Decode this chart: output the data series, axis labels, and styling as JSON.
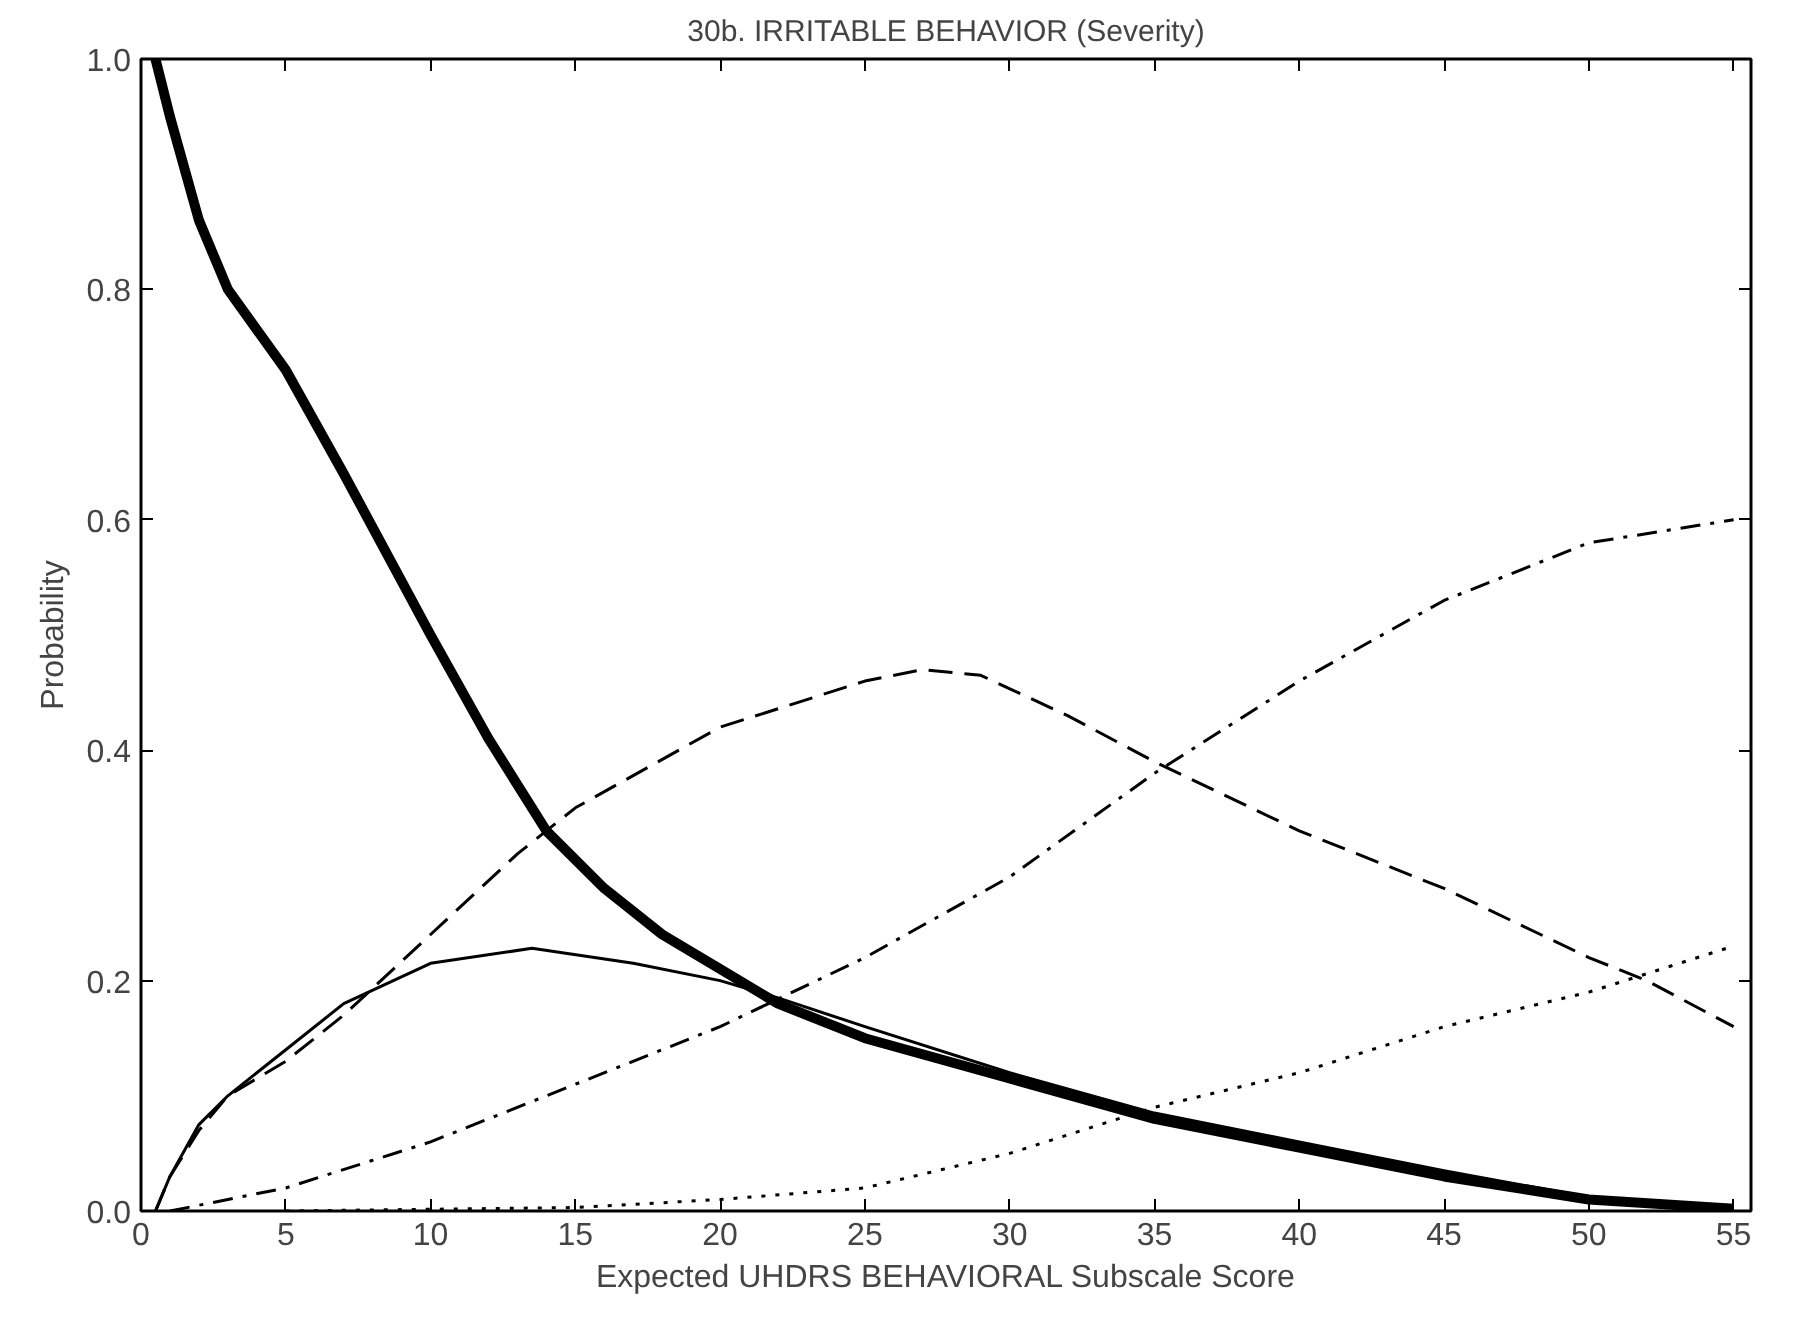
{
  "chart_data": {
    "type": "line",
    "title": "30b. IRRITABLE BEHAVIOR (Severity)",
    "xlabel": "Expected UHDRS BEHAVIORAL Subscale Score",
    "ylabel": "Probability",
    "xlim": [
      0,
      55.6
    ],
    "ylim": [
      0,
      1.0
    ],
    "xticks": [
      0,
      5,
      10,
      15,
      20,
      25,
      30,
      35,
      40,
      45,
      50,
      55
    ],
    "yticks": [
      {
        "value": 0,
        "label": "0.0"
      },
      {
        "value": 0.2,
        "label": "0.2"
      },
      {
        "value": 0.4,
        "label": "0.4"
      },
      {
        "value": 0.6,
        "label": "0.6"
      },
      {
        "value": 0.8,
        "label": "0.8"
      },
      {
        "value": 1.0,
        "label": "1.0"
      }
    ],
    "grid": false,
    "series": [
      {
        "color": "#000000",
        "line_style": "solid",
        "x": [
          0.5,
          1,
          2,
          3,
          5,
          7,
          10,
          12,
          14,
          16,
          18,
          20,
          22,
          25,
          30,
          35,
          40,
          45,
          50,
          55
        ],
        "values": [
          1.0,
          0.95,
          0.86,
          0.8,
          0.73,
          0.64,
          0.5,
          0.41,
          0.33,
          0.28,
          0.24,
          0.21,
          0.18,
          0.15,
          0.115,
          0.08,
          0.055,
          0.03,
          0.01,
          0.002
        ]
      },
      {
        "color": "#000000",
        "line_style": "solid",
        "x": [
          0.5,
          1,
          2,
          3,
          5,
          7,
          10,
          13.5,
          17,
          20,
          22,
          25,
          30,
          35,
          40,
          45,
          50,
          55
        ],
        "values": [
          0,
          0.03,
          0.075,
          0.1,
          0.14,
          0.18,
          0.215,
          0.228,
          0.215,
          0.2,
          0.185,
          0.16,
          0.12,
          0.085,
          0.06,
          0.035,
          0.012,
          0.002
        ]
      },
      {
        "color": "#000000",
        "line_style": "dashed",
        "x": [
          0.5,
          1,
          2,
          3,
          5,
          7,
          10,
          13,
          15,
          20,
          25,
          27,
          29,
          32,
          35,
          40,
          45,
          50,
          52,
          55
        ],
        "values": [
          0,
          0.03,
          0.07,
          0.1,
          0.13,
          0.17,
          0.24,
          0.31,
          0.35,
          0.42,
          0.46,
          0.47,
          0.465,
          0.43,
          0.39,
          0.33,
          0.28,
          0.22,
          0.2,
          0.16
        ]
      },
      {
        "color": "#000000",
        "line_style": "dashdot",
        "x": [
          1,
          3,
          5,
          10,
          15,
          20,
          25,
          30,
          35,
          40,
          45,
          50,
          55
        ],
        "values": [
          0,
          0.01,
          0.02,
          0.06,
          0.11,
          0.16,
          0.22,
          0.29,
          0.38,
          0.46,
          0.53,
          0.58,
          0.6
        ]
      },
      {
        "color": "#000000",
        "line_style": "dotted",
        "x": [
          5,
          15,
          20,
          25,
          30,
          35,
          40,
          45,
          50,
          55
        ],
        "values": [
          0,
          0.003,
          0.01,
          0.02,
          0.05,
          0.09,
          0.12,
          0.16,
          0.19,
          0.23
        ]
      }
    ]
  }
}
